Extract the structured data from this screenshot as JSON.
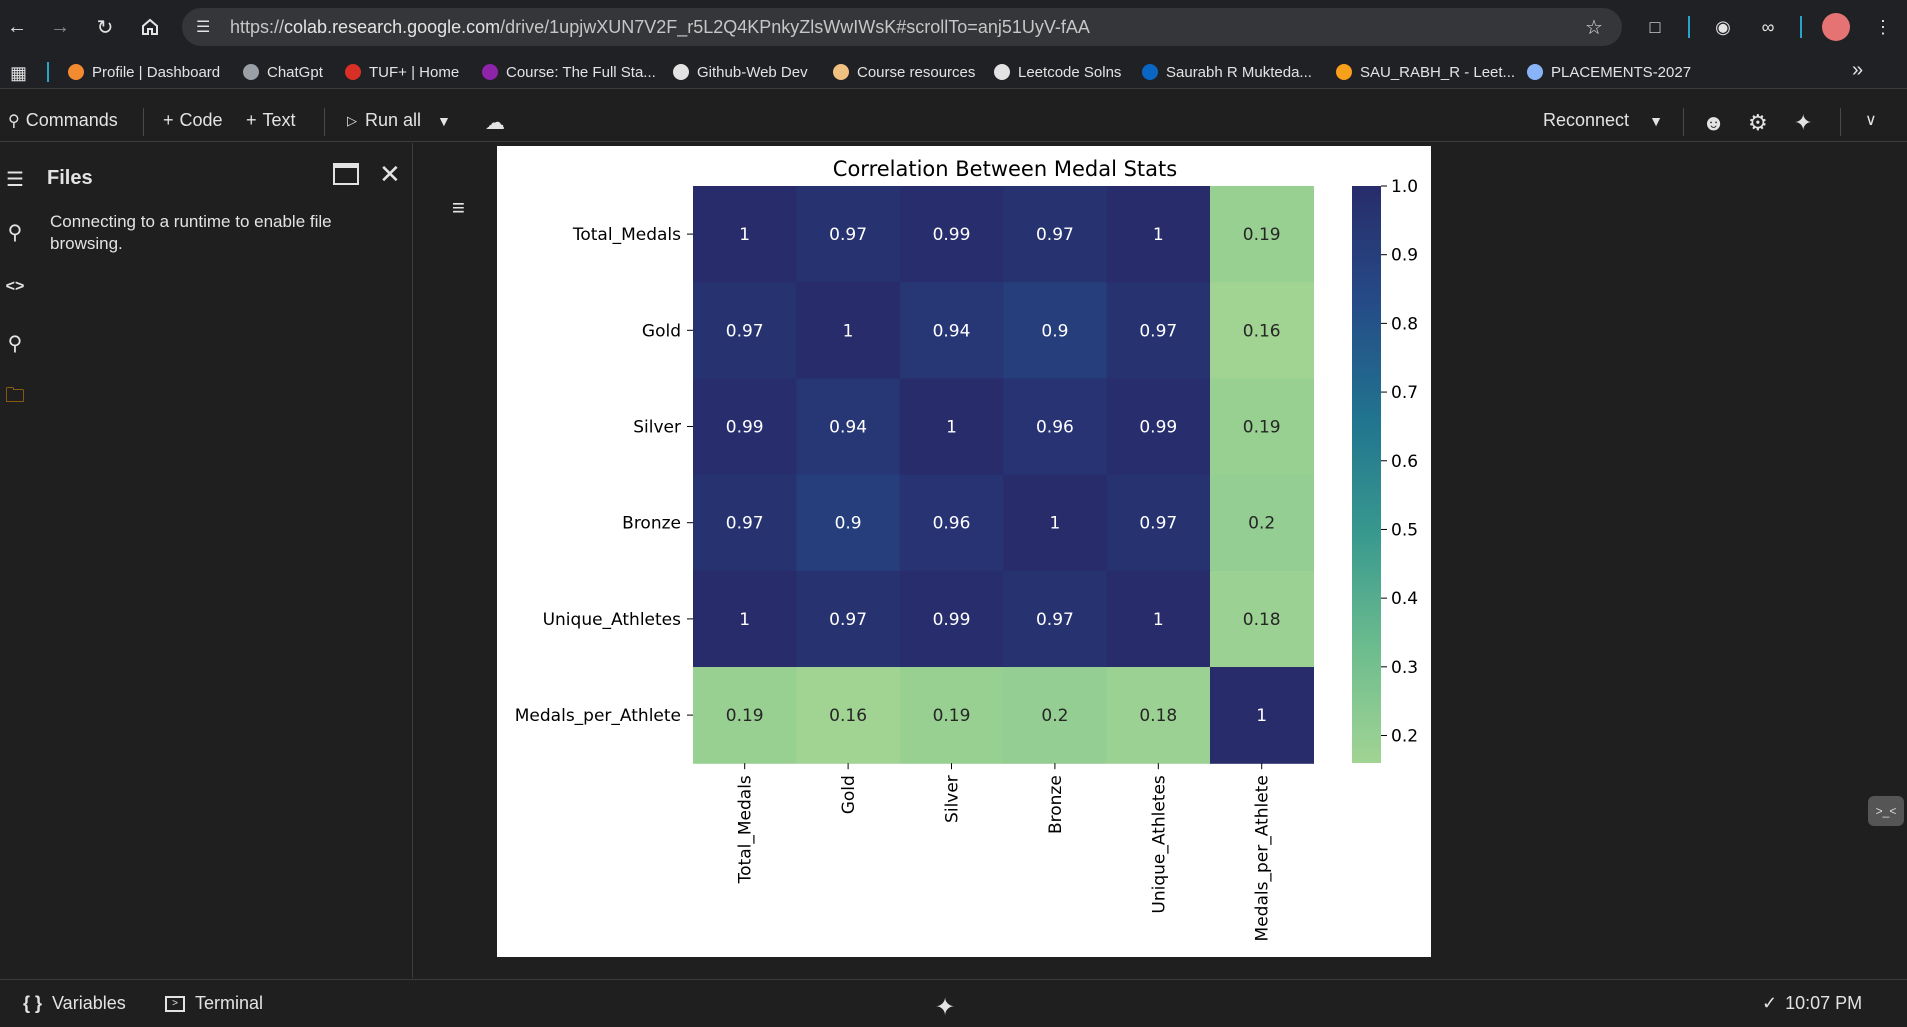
{
  "browser": {
    "url_prefix": "https://",
    "url_host": "colab.research.google.com",
    "url_path": "/drive/1upjwXUN7V2F_r5L2Q4KPnkyZlsWwIWsK#scrollTo=anj51UyV-fAA",
    "bookmarks": [
      {
        "label": "Profile | Dashboard",
        "icon": "profile-icon",
        "color": "#f28b30"
      },
      {
        "label": "ChatGpt",
        "icon": "chatgpt-icon",
        "color": "#9aa0a6"
      },
      {
        "label": "TUF+ | Home",
        "icon": "tuf-icon",
        "color": "#d93025"
      },
      {
        "label": "Course: The Full Sta...",
        "icon": "course-icon",
        "color": "#8e24aa"
      },
      {
        "label": "Github-Web Dev",
        "icon": "github-icon",
        "color": "#e3e3e3"
      },
      {
        "label": "Course resources",
        "icon": "resources-icon",
        "color": "#f0c080"
      },
      {
        "label": "Leetcode Solns",
        "icon": "github-icon",
        "color": "#e3e3e3"
      },
      {
        "label": "Saurabh R Mukteda...",
        "icon": "linkedin-icon",
        "color": "#0a66c2"
      },
      {
        "label": "SAU_RABH_R - Leet...",
        "icon": "leetcode-icon",
        "color": "#f89f1b"
      },
      {
        "label": "PLACEMENTS-2027",
        "icon": "group-icon",
        "color": "#8ab4f8"
      }
    ]
  },
  "toolbar": {
    "commands": "Commands",
    "code": "Code",
    "text": "Text",
    "run_all": "Run all",
    "reconnect": "Reconnect"
  },
  "files_panel": {
    "title": "Files",
    "message": "Connecting to a runtime to enable file browsing."
  },
  "status": {
    "variables": "Variables",
    "terminal": "Terminal",
    "time": "10:07 PM"
  },
  "chart_data": {
    "type": "heatmap",
    "title": "Correlation Between Medal Stats",
    "labels": [
      "Total_Medals",
      "Gold",
      "Silver",
      "Bronze",
      "Unique_Athletes",
      "Medals_per_Athlete"
    ],
    "values": [
      [
        1,
        0.97,
        0.99,
        0.97,
        1,
        0.19
      ],
      [
        0.97,
        1,
        0.94,
        0.9,
        0.97,
        0.16
      ],
      [
        0.99,
        0.94,
        1,
        0.96,
        0.99,
        0.19
      ],
      [
        0.97,
        0.9,
        0.96,
        1,
        0.97,
        0.2
      ],
      [
        1,
        0.97,
        0.99,
        0.97,
        1,
        0.18
      ],
      [
        0.19,
        0.16,
        0.19,
        0.2,
        0.18,
        1
      ]
    ],
    "colormap": "crest",
    "vmin": 0.16,
    "vmax": 1.0,
    "colorbar_ticks": [
      "1.0",
      "0.9",
      "0.8",
      "0.7",
      "0.6",
      "0.5",
      "0.4",
      "0.3",
      "0.2"
    ],
    "annotations": true
  }
}
